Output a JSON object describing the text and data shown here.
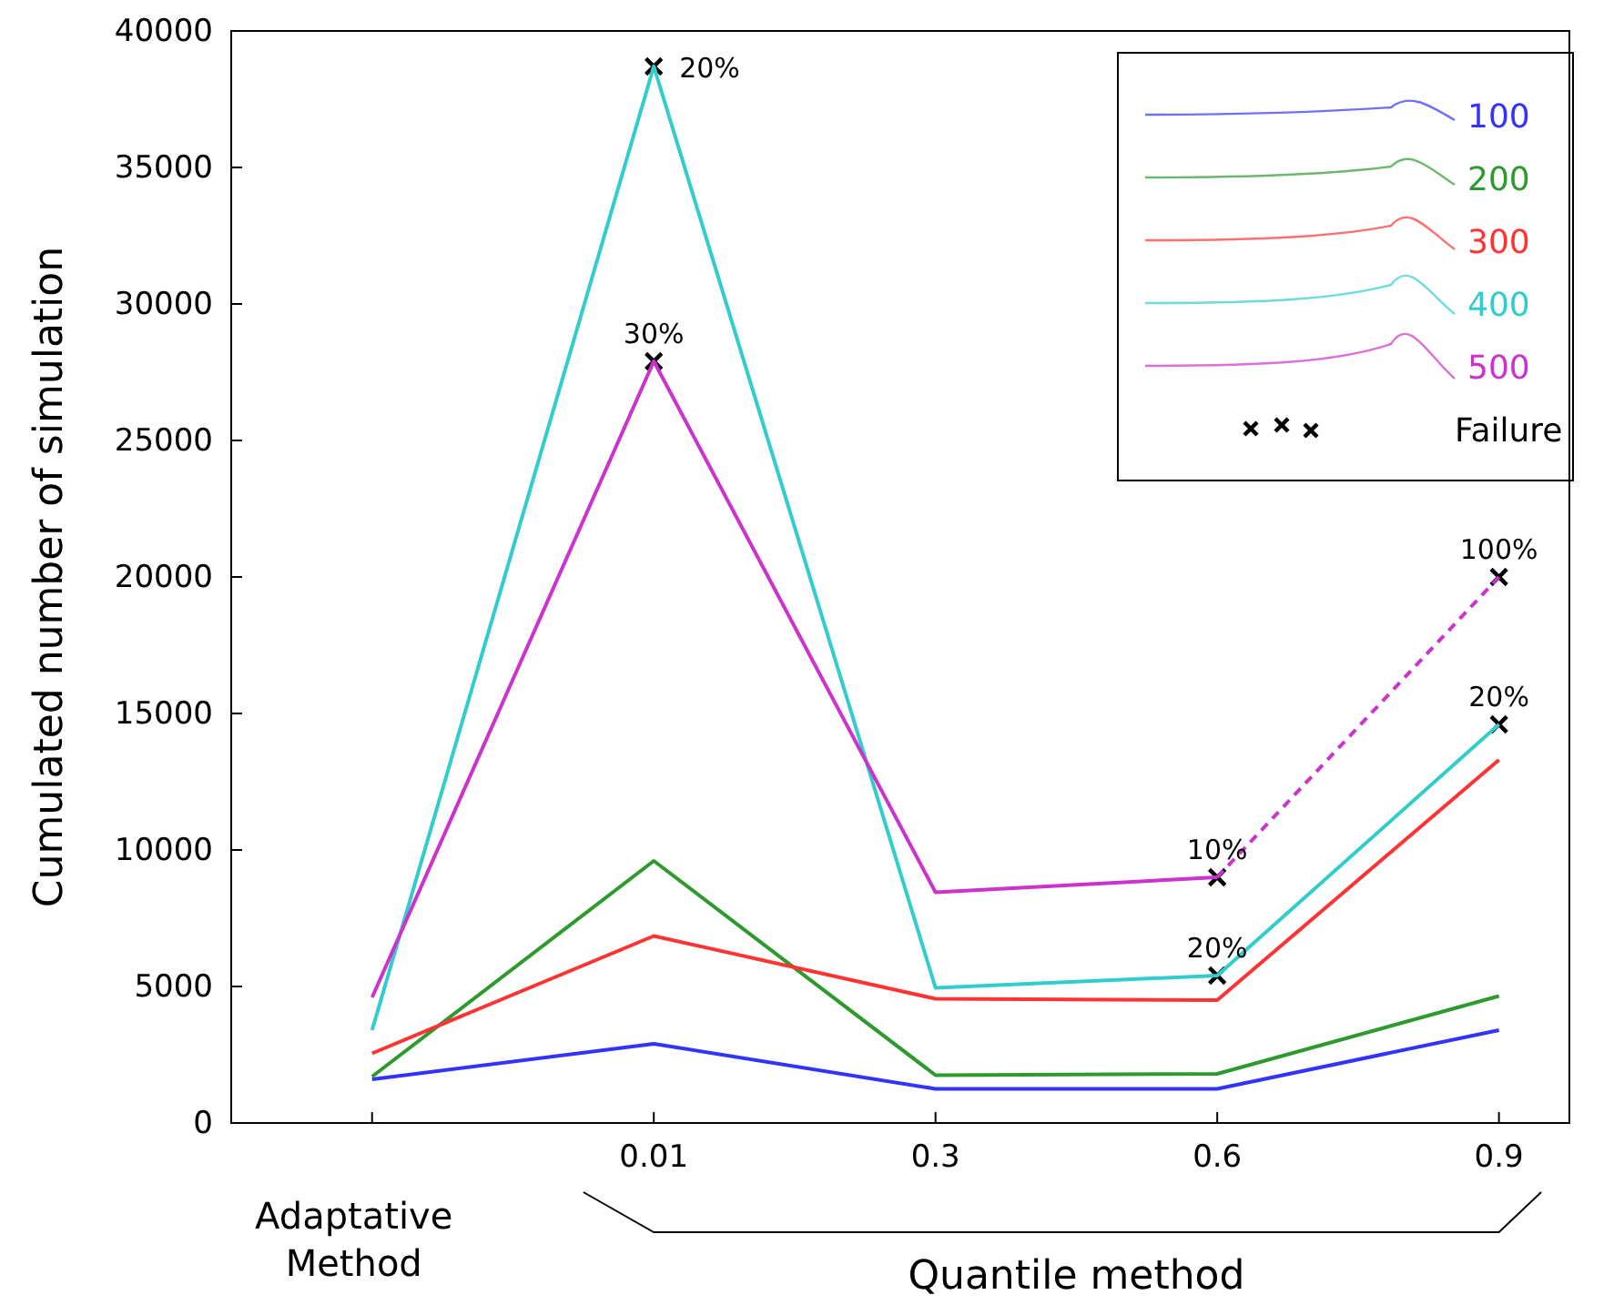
{
  "chart_data": {
    "type": "line",
    "ylabel": "Cumulated number of simulation",
    "categories": [
      null,
      "0.01",
      "0.3",
      "0.6",
      "0.9"
    ],
    "ylim": [
      0,
      40000
    ],
    "yticks": [
      0,
      5000,
      10000,
      15000,
      20000,
      25000,
      30000,
      35000,
      40000
    ],
    "grid": false,
    "legend": "top right",
    "marker": "none",
    "line_style": "solid",
    "series": [
      {
        "name": "100",
        "color": "#3333ff",
        "values": [
          1600,
          2900,
          1250,
          1250,
          3400
        ]
      },
      {
        "name": "200",
        "color": "#2e9a2e",
        "values": [
          1700,
          9600,
          1750,
          1800,
          4650
        ]
      },
      {
        "name": "300",
        "color": "#ff3333",
        "values": [
          2550,
          6850,
          4550,
          4500,
          13300
        ]
      },
      {
        "name": "400",
        "color": "#33cccc",
        "values": [
          3400,
          38700,
          4950,
          5400,
          14600
        ]
      },
      {
        "name": "500",
        "color": "#cc33cc",
        "values": [
          4600,
          27900,
          8450,
          9000,
          null
        ]
      },
      {
        "color": "#cc33cc",
        "line_style": "dashed",
        "values": [
          null,
          null,
          null,
          9000,
          20000
        ]
      },
      {
        "name": "Failure",
        "type": "scatter",
        "marker": "cross",
        "color": "#000000",
        "x": [
          "0.01",
          "0.01",
          "0.6",
          "0.6",
          "0.9",
          "0.9"
        ],
        "values": [
          38700,
          27900,
          9000,
          5400,
          14600,
          20000
        ]
      }
    ],
    "annotations": [
      "Adaptative Method",
      "Quantile method",
      {
        "text": "20%",
        "x": "0.01",
        "y": 38700
      },
      {
        "text": "30%",
        "x": "0.01",
        "y": 27900
      },
      {
        "text": "10%",
        "x": "0.6",
        "y": 9000
      },
      {
        "text": "20%",
        "x": "0.6",
        "y": 5400
      },
      {
        "text": "20%",
        "x": "0.9",
        "y": 14600
      },
      {
        "text": "100%",
        "x": "0.9",
        "y": 20000
      }
    ]
  }
}
